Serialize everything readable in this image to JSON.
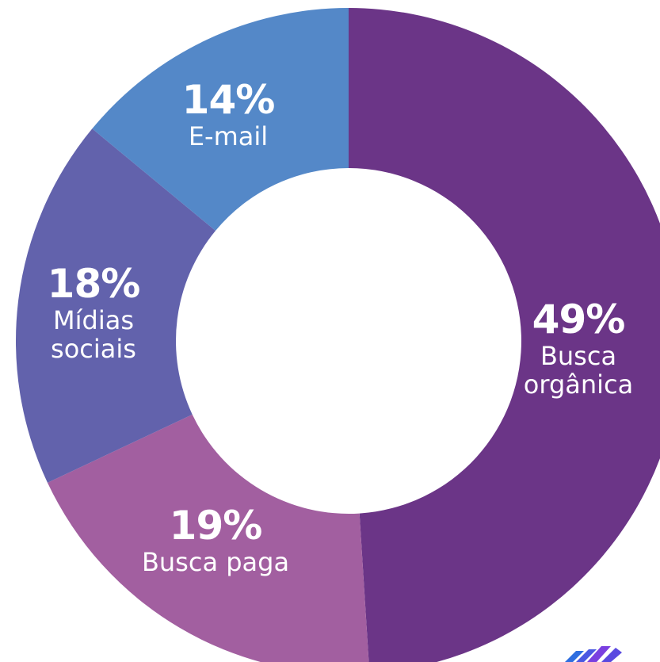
{
  "chart_data": {
    "type": "pie",
    "donut": true,
    "slices": [
      {
        "label": [
          "Busca",
          "orgânica"
        ],
        "value": 49,
        "display": "49%",
        "color": "#6b3587"
      },
      {
        "label": [
          "Busca paga"
        ],
        "value": 19,
        "display": "19%",
        "color": "#a25fa0"
      },
      {
        "label": [
          "Mídias",
          "sociais"
        ],
        "value": 18,
        "display": "18%",
        "color": "#6262ac"
      },
      {
        "label": [
          "E-mail"
        ],
        "value": 14,
        "display": "14%",
        "color": "#5488c8"
      }
    ]
  },
  "logo": {
    "colors": [
      "#2f6ee0",
      "#7a3fe0"
    ]
  }
}
